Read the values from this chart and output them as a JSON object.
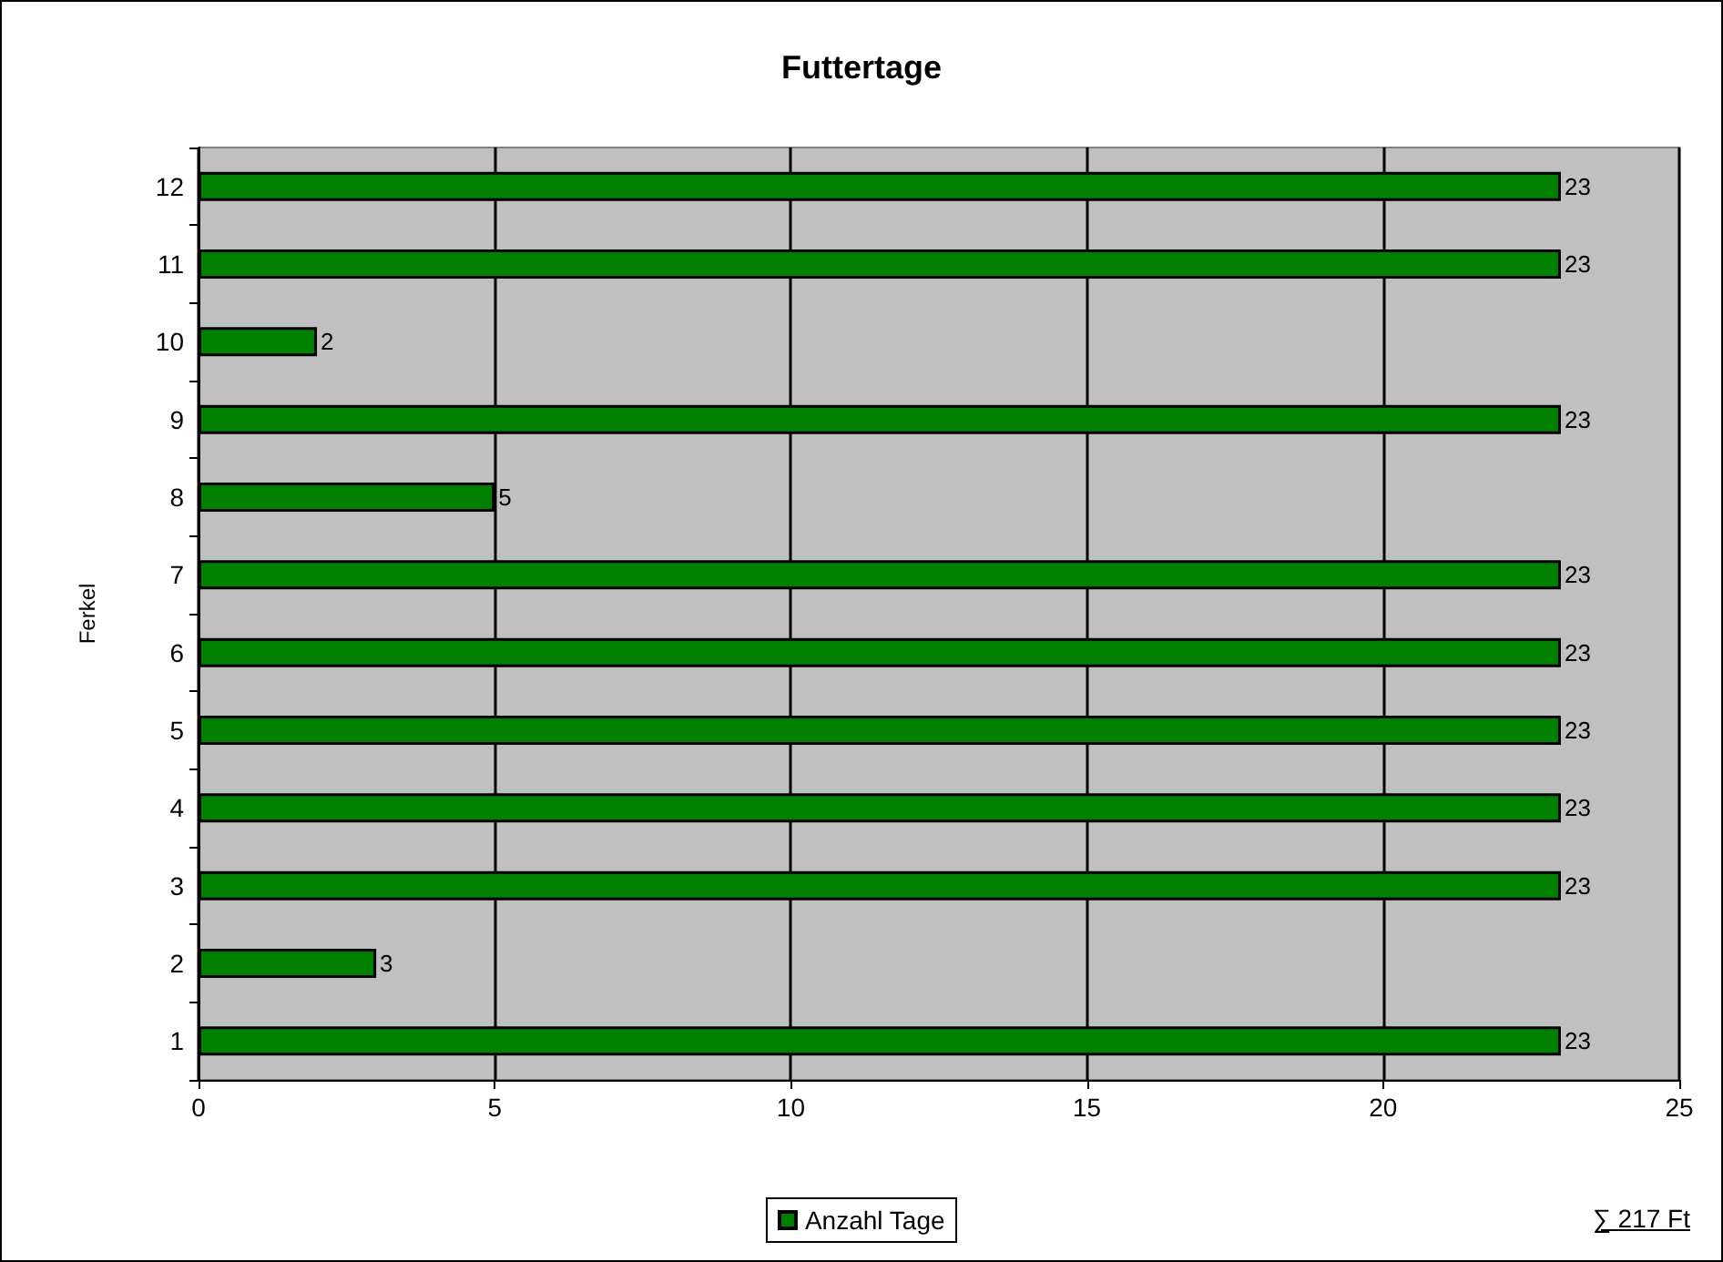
{
  "chart_data": {
    "type": "bar",
    "orientation": "horizontal",
    "title": "Futtertage",
    "ylabel": "Ferkel",
    "categories": [
      "12",
      "11",
      "10",
      "9",
      "8",
      "7",
      "6",
      "5",
      "4",
      "3",
      "2",
      "1"
    ],
    "series": [
      {
        "name": "Anzahl Tage",
        "color": "#008000",
        "values": [
          23,
          23,
          2,
          23,
          5,
          23,
          23,
          23,
          23,
          23,
          3,
          23
        ]
      }
    ],
    "xlim": [
      0,
      25
    ],
    "xticks": [
      0,
      5,
      10,
      15,
      20,
      25
    ],
    "grid": "x",
    "legend": "bottom",
    "data_labels": true,
    "annotations": [
      "∑ 217 Ft"
    ]
  }
}
